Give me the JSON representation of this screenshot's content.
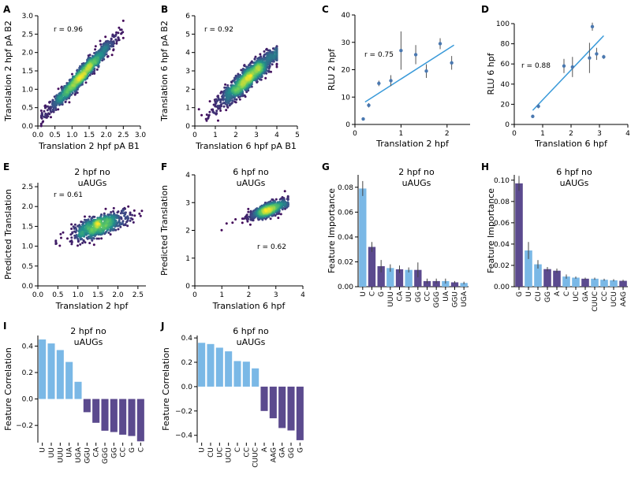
{
  "colors": {
    "light_blue": "#7ab8e6",
    "dark_purple": "#5b4a8e",
    "fit_line": "#3a9ad9",
    "point": "#4a78b0",
    "density_low": "#3b0f70",
    "density_mid": "#21918c",
    "density_high": "#fde725"
  },
  "chart_data": [
    {
      "id": "A",
      "type": "scatter",
      "letter": "A",
      "xlabel": "Translation 2 hpf pA B1",
      "ylabel": "Translation 2 hpf pA B2",
      "xlim": [
        0,
        3.0
      ],
      "ylim": [
        0,
        3.0
      ],
      "xticks": [
        0.0,
        0.5,
        1.0,
        1.5,
        2.0,
        2.5,
        3.0
      ],
      "xtick_labels": [
        "0.0",
        "0.5",
        "1.0",
        "1.5",
        "2.0",
        "2.5",
        "3.0"
      ],
      "yticks": [
        0.0,
        0.5,
        1.0,
        1.5,
        2.0,
        2.5,
        3.0
      ],
      "ytick_labels": [
        "0.0",
        "0.5",
        "1.0",
        "1.5",
        "2.0",
        "2.5",
        "3.0"
      ],
      "annotation": "r = 0.96",
      "density": {
        "center": [
          1.3,
          1.4
        ],
        "spread": 0.45,
        "slope": 1.0,
        "noise": 0.12,
        "n": 1400,
        "lo": 0.1,
        "hi": 2.5
      }
    },
    {
      "id": "B",
      "type": "scatter",
      "letter": "B",
      "xlabel": "Translation 6 hpf pA B1",
      "ylabel": "Translation 6 hpf pA B2",
      "xlim": [
        0,
        5
      ],
      "ylim": [
        0,
        6
      ],
      "xticks": [
        0,
        1,
        2,
        3,
        4,
        5
      ],
      "xtick_labels": [
        "0",
        "1",
        "2",
        "3",
        "4",
        "5"
      ],
      "yticks": [
        0,
        1,
        2,
        3,
        4,
        5,
        6
      ],
      "ytick_labels": [
        "0",
        "1",
        "2",
        "3",
        "4",
        "5",
        "6"
      ],
      "annotation": "r = 0.92",
      "density": {
        "center": [
          2.6,
          2.6
        ],
        "spread": 0.7,
        "slope": 0.95,
        "noise": 0.3,
        "n": 1400,
        "lo": 0.2,
        "hi": 4.0
      }
    },
    {
      "id": "C",
      "type": "scatter",
      "letter": "C",
      "xlabel": "Translation 2 hpf",
      "ylabel": "RLU 2 hpf",
      "xlim": [
        0,
        2.5
      ],
      "ylim": [
        0,
        40
      ],
      "xticks": [
        0,
        1,
        2
      ],
      "xtick_labels": [
        "0",
        "1",
        "2"
      ],
      "yticks": [
        0,
        10,
        20,
        30,
        40
      ],
      "ytick_labels": [
        "0",
        "10",
        "20",
        "30",
        "40"
      ],
      "annotation": "r = 0.75",
      "x": [
        0.18,
        0.3,
        0.52,
        0.78,
        1.0,
        1.32,
        1.55,
        1.85,
        2.1
      ],
      "y": [
        2,
        7,
        15,
        16,
        27,
        25.5,
        19.5,
        29.5,
        22.5
      ],
      "err": [
        0.5,
        0.8,
        1.0,
        2.0,
        7.0,
        3.5,
        2.5,
        2.0,
        2.5
      ],
      "fit": [
        [
          0.22,
          8.2
        ],
        [
          2.15,
          29.0
        ]
      ]
    },
    {
      "id": "D",
      "type": "scatter",
      "letter": "D",
      "xlabel": "Translation 6 hpf",
      "ylabel": "RLU 6 hpf",
      "xlim": [
        0,
        4
      ],
      "ylim": [
        0,
        100
      ],
      "xticks": [
        0,
        1,
        2,
        3,
        4
      ],
      "xtick_labels": [
        "0",
        "1",
        "2",
        "3",
        "4"
      ],
      "yticks": [
        0,
        20,
        40,
        60,
        80,
        100
      ],
      "ytick_labels": [
        "0",
        "20",
        "40",
        "60",
        "80",
        "100"
      ],
      "annotation": "r = 0.88",
      "x": [
        0.65,
        0.85,
        1.75,
        2.05,
        2.65,
        2.75,
        2.9,
        3.15
      ],
      "y": [
        8,
        18,
        58,
        57,
        66,
        97,
        70,
        67
      ],
      "err": [
        1,
        2,
        7,
        10,
        15,
        4,
        6,
        2
      ],
      "fit": [
        [
          0.65,
          14
        ],
        [
          3.15,
          88
        ]
      ]
    },
    {
      "id": "E",
      "type": "scatter",
      "letter": "E",
      "title_lines": [
        "2 hpf no",
        "uAUGs"
      ],
      "xlabel": "Translation 2 hpf",
      "ylabel": "Predicted Translation",
      "xlim": [
        0,
        2.7
      ],
      "ylim": [
        0,
        2.6
      ],
      "xticks": [
        0.0,
        0.5,
        1.0,
        1.5,
        2.0,
        2.5
      ],
      "xtick_labels": [
        "0.0",
        "0.5",
        "1.0",
        "1.5",
        "2.0",
        "2.5"
      ],
      "yticks": [
        0.0,
        0.5,
        1.0,
        1.5,
        2.0,
        2.5
      ],
      "ytick_labels": [
        "0.0",
        "0.5",
        "1.0",
        "1.5",
        "2.0",
        "2.5"
      ],
      "annotation": "r = 0.61",
      "density": {
        "center": [
          1.55,
          1.52
        ],
        "spread": 0.35,
        "slope": 0.32,
        "noise": 0.13,
        "n": 700,
        "lo": 0.45,
        "hi": 2.6
      }
    },
    {
      "id": "F",
      "type": "scatter",
      "letter": "F",
      "title_lines": [
        "6 hpf no",
        "uAUGs"
      ],
      "xlabel": "Translation 6 hpf",
      "ylabel": "Predicted Translation",
      "xlim": [
        0,
        4
      ],
      "ylim": [
        0,
        4
      ],
      "xticks": [
        0,
        1,
        2,
        3,
        4
      ],
      "xtick_labels": [
        "0",
        "1",
        "2",
        "3",
        "4"
      ],
      "yticks": [
        0,
        1,
        2,
        3,
        4
      ],
      "ytick_labels": [
        "0",
        "1",
        "2",
        "3",
        "4"
      ],
      "annotation": "r = 0.62",
      "density": {
        "center": [
          2.75,
          2.75
        ],
        "spread": 0.35,
        "slope": 0.35,
        "noise": 0.12,
        "n": 700,
        "lo": 0.9,
        "hi": 3.45
      }
    },
    {
      "id": "G",
      "type": "bar",
      "letter": "G",
      "title_lines": [
        "2 hpf no",
        "uAUGs"
      ],
      "ylabel": "Feature Importance",
      "categories": [
        "U",
        "C",
        "G",
        "UUU",
        "CA",
        "UU",
        "GG",
        "CC",
        "GGG",
        "UA",
        "GGU",
        "UGA"
      ],
      "values": [
        0.079,
        0.032,
        0.0165,
        0.015,
        0.014,
        0.0135,
        0.0135,
        0.0045,
        0.0045,
        0.0045,
        0.0035,
        0.003
      ],
      "errors": [
        0.006,
        0.004,
        0.005,
        0.003,
        0.003,
        0.002,
        0.006,
        0.002,
        0.002,
        0.002,
        0.001,
        0.001
      ],
      "bar_colors": [
        "light_blue",
        "dark_purple",
        "dark_purple",
        "light_blue",
        "dark_purple",
        "light_blue",
        "dark_purple",
        "dark_purple",
        "dark_purple",
        "light_blue",
        "dark_purple",
        "light_blue"
      ],
      "ylim": [
        0,
        0.09
      ],
      "yticks": [
        0.0,
        0.02,
        0.04,
        0.06,
        0.08
      ],
      "ytick_labels": [
        "0.00",
        "0.02",
        "0.04",
        "0.06",
        "0.08"
      ]
    },
    {
      "id": "H",
      "type": "bar",
      "letter": "H",
      "title_lines": [
        "6 hpf no",
        "uAUGs"
      ],
      "ylabel": "Feature Importance",
      "categories": [
        "G",
        "U",
        "CU",
        "GG",
        "A",
        "C",
        "UC",
        "GA",
        "CUUC",
        "CC",
        "UCU",
        "AAG"
      ],
      "values": [
        0.097,
        0.034,
        0.021,
        0.0165,
        0.015,
        0.0095,
        0.0085,
        0.0075,
        0.0075,
        0.0065,
        0.006,
        0.0055
      ],
      "errors": [
        0.007,
        0.008,
        0.004,
        0.002,
        0.002,
        0.002,
        0.001,
        0.001,
        0.001,
        0.001,
        0.001,
        0.001
      ],
      "bar_colors": [
        "dark_purple",
        "light_blue",
        "light_blue",
        "dark_purple",
        "dark_purple",
        "light_blue",
        "light_blue",
        "dark_purple",
        "light_blue",
        "light_blue",
        "light_blue",
        "dark_purple"
      ],
      "ylim": [
        0,
        0.105
      ],
      "yticks": [
        0.0,
        0.02,
        0.04,
        0.06,
        0.08,
        0.1
      ],
      "ytick_labels": [
        "0.00",
        "0.02",
        "0.04",
        "0.06",
        "0.08",
        "0.10"
      ]
    },
    {
      "id": "I",
      "type": "bar",
      "letter": "I",
      "title_lines": [
        "2 hpf no",
        "uAUGs"
      ],
      "ylabel": "Feature Correlation",
      "categories": [
        "U",
        "UU",
        "UUU",
        "UA",
        "UGA",
        "GGU",
        "CA",
        "GGG",
        "GG",
        "CC",
        "G",
        "C"
      ],
      "values": [
        0.45,
        0.42,
        0.37,
        0.28,
        0.13,
        -0.1,
        -0.18,
        -0.24,
        -0.25,
        -0.27,
        -0.28,
        -0.32
      ],
      "bar_colors": [
        "light_blue",
        "light_blue",
        "light_blue",
        "light_blue",
        "light_blue",
        "dark_purple",
        "dark_purple",
        "dark_purple",
        "dark_purple",
        "dark_purple",
        "dark_purple",
        "dark_purple"
      ],
      "ylim": [
        -0.33,
        0.48
      ],
      "yticks": [
        -0.2,
        0.0,
        0.2,
        0.4
      ],
      "ytick_labels": [
        "−0.2",
        "0.0",
        "0.2",
        "0.4"
      ]
    },
    {
      "id": "J",
      "type": "bar",
      "letter": "J",
      "title_lines": [
        "6 hpf no",
        "uAUGs"
      ],
      "ylabel": "Feature Correlation",
      "categories": [
        "U",
        "CU",
        "UC",
        "UCU",
        "C",
        "CC",
        "CUUC",
        "A",
        "AAG",
        "GA",
        "GG",
        "G"
      ],
      "values": [
        0.36,
        0.35,
        0.32,
        0.29,
        0.21,
        0.205,
        0.15,
        -0.2,
        -0.26,
        -0.34,
        -0.36,
        -0.44
      ],
      "bar_colors": [
        "light_blue",
        "light_blue",
        "light_blue",
        "light_blue",
        "light_blue",
        "light_blue",
        "light_blue",
        "dark_purple",
        "dark_purple",
        "dark_purple",
        "dark_purple",
        "dark_purple"
      ],
      "ylim": [
        -0.46,
        0.42
      ],
      "yticks": [
        -0.4,
        -0.2,
        0.0,
        0.2,
        0.4
      ],
      "ytick_labels": [
        "−0.4",
        "−0.2",
        "0.0",
        "0.2",
        "0.4"
      ]
    }
  ]
}
